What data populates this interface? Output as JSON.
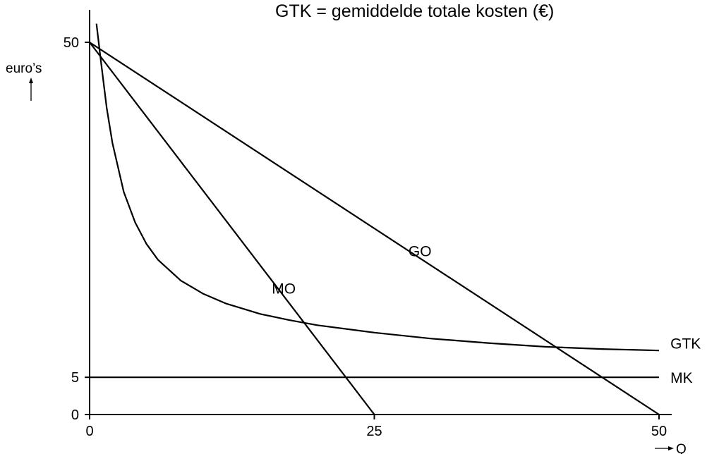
{
  "chart_data": {
    "type": "line",
    "title": "GTK = gemiddelde totale kosten (€)",
    "ylabel": "euro’s",
    "xlabel": "Q",
    "xlim": [
      0,
      53
    ],
    "ylim": [
      0,
      53
    ],
    "x_ticks": [
      {
        "value": 0,
        "label": "0"
      },
      {
        "value": 25,
        "label": "25"
      },
      {
        "value": 50,
        "label": "50"
      }
    ],
    "y_ticks": [
      {
        "value": 0,
        "label": "0"
      },
      {
        "value": 5,
        "label": "5"
      },
      {
        "value": 50,
        "label": "50"
      }
    ],
    "grid": false,
    "series": [
      {
        "name": "GO",
        "label_at": [
          28,
          22
        ],
        "points": [
          [
            0,
            50
          ],
          [
            50,
            0
          ]
        ]
      },
      {
        "name": "MO",
        "label_at": [
          16,
          17
        ],
        "points": [
          [
            0,
            50
          ],
          [
            25,
            0
          ]
        ]
      },
      {
        "name": "MK",
        "label_at": [
          51,
          5
        ],
        "points": [
          [
            0,
            5
          ],
          [
            50,
            5
          ]
        ]
      },
      {
        "name": "GTK",
        "label_at": [
          51,
          9.6
        ],
        "points": [
          [
            0.6,
            52.5
          ],
          [
            1,
            47.4
          ],
          [
            1.5,
            41.2
          ],
          [
            2,
            36.5
          ],
          [
            3,
            29.9
          ],
          [
            4,
            25.8
          ],
          [
            5,
            22.9
          ],
          [
            6,
            20.8
          ],
          [
            8,
            18.0
          ],
          [
            10,
            16.2
          ],
          [
            12,
            14.9
          ],
          [
            15,
            13.5
          ],
          [
            17.5,
            12.7
          ],
          [
            20,
            12.0
          ],
          [
            25,
            11.0
          ],
          [
            30,
            10.2
          ],
          [
            35,
            9.6
          ],
          [
            40,
            9.1
          ],
          [
            45,
            8.8
          ],
          [
            50,
            8.6
          ]
        ]
      }
    ]
  }
}
